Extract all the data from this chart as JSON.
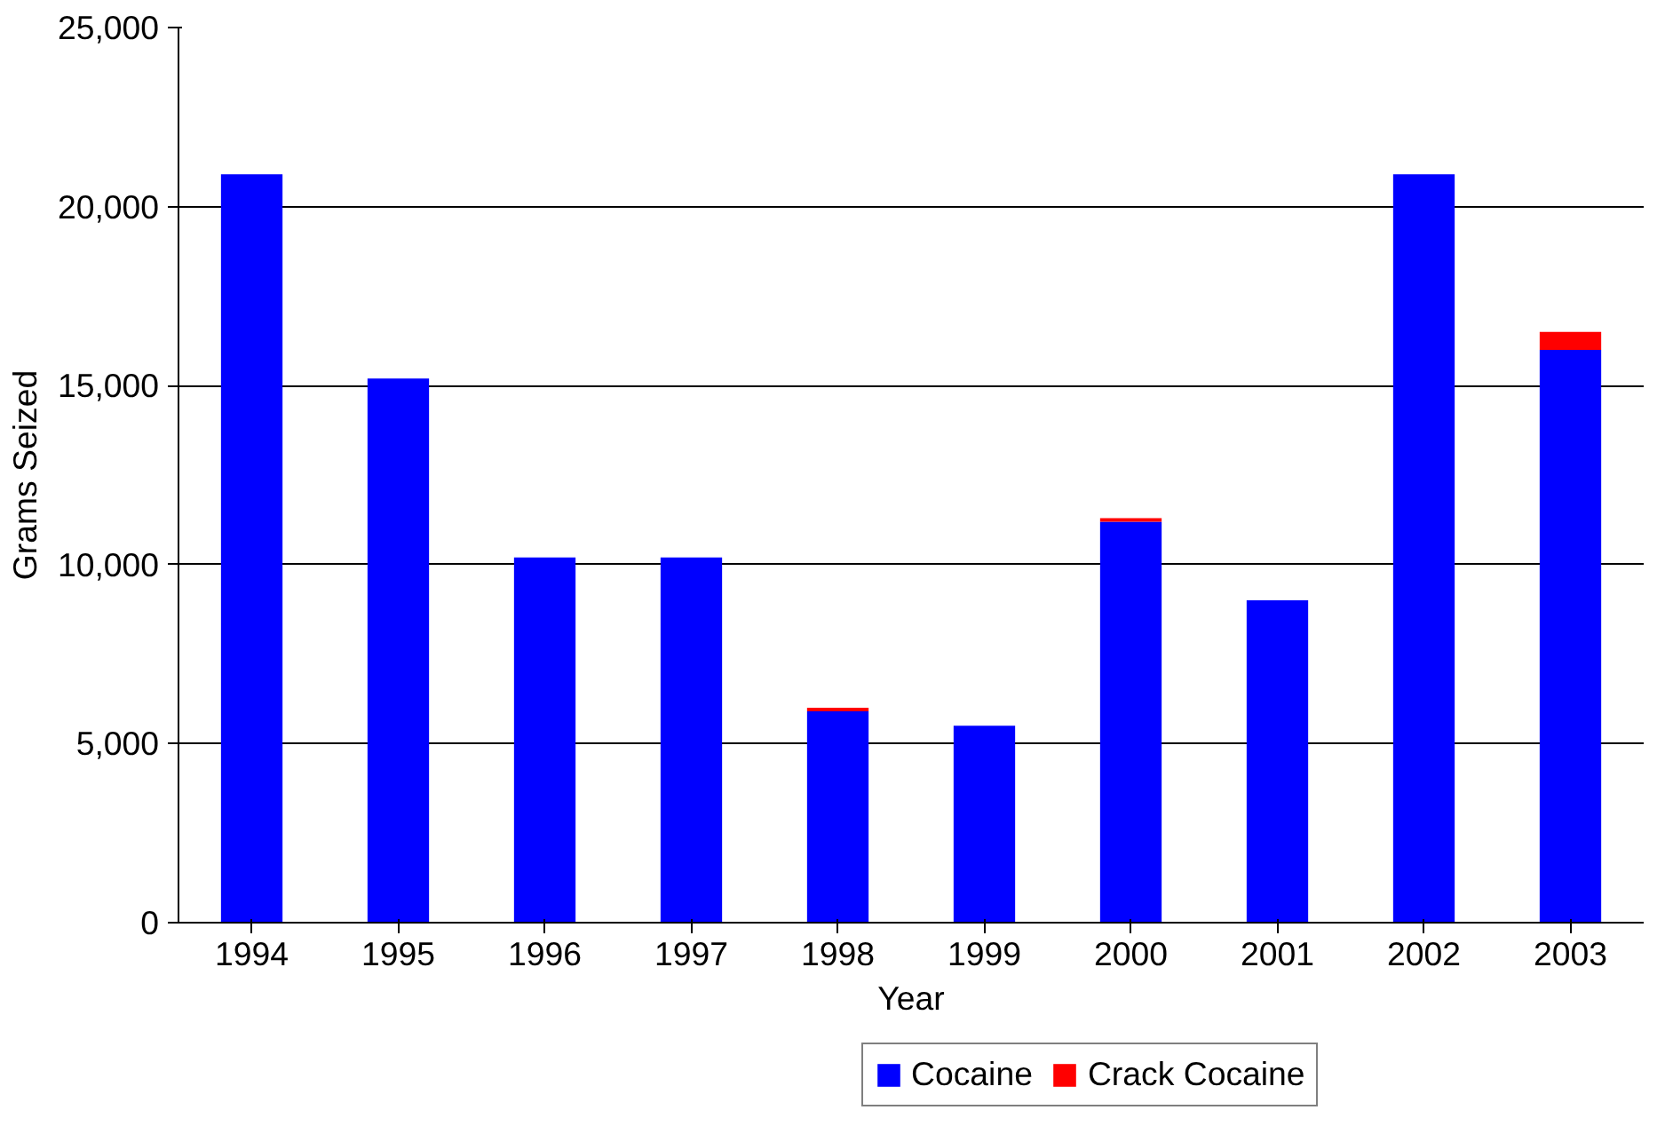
{
  "chart_data": {
    "type": "bar",
    "stacked": true,
    "xlabel": "Year",
    "ylabel": "Grams Seized",
    "categories": [
      "1994",
      "1995",
      "1996",
      "1997",
      "1998",
      "1999",
      "2000",
      "2001",
      "2002",
      "2003"
    ],
    "series": [
      {
        "name": "Cocaine",
        "color": "#0000ff",
        "values": [
          20900,
          15200,
          10200,
          10200,
          5900,
          5500,
          11200,
          9000,
          20900,
          16000
        ]
      },
      {
        "name": "Crack Cocaine",
        "color": "#ff0000",
        "values": [
          0,
          0,
          0,
          0,
          100,
          0,
          100,
          0,
          0,
          500
        ]
      }
    ],
    "ylim": [
      0,
      25000
    ],
    "yticks": [
      {
        "value": 0,
        "label": "0"
      },
      {
        "value": 5000,
        "label": "5,000"
      },
      {
        "value": 10000,
        "label": "10,000"
      },
      {
        "value": 15000,
        "label": "15,000"
      },
      {
        "value": 20000,
        "label": "20,000"
      },
      {
        "value": 25000,
        "label": "25,000"
      }
    ],
    "grid": "y",
    "legend": "bottom"
  }
}
